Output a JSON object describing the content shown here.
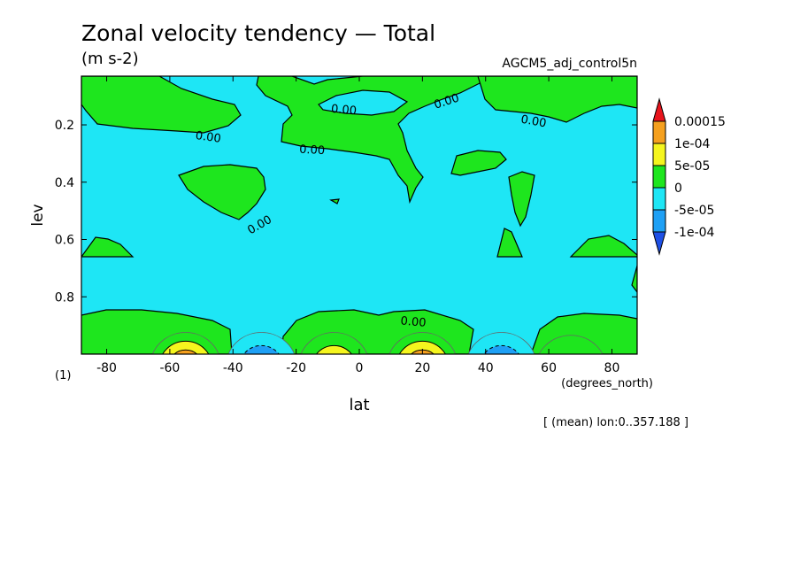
{
  "chart_data": {
    "type": "heatmap",
    "title": "Zonal velocity tendency — Total",
    "units": "(m s-2)",
    "dataset": "AGCM5_adj_control5n",
    "xlabel": "lat",
    "x_units": "(degrees_north)",
    "ylabel": "lev",
    "y_note": "(1)",
    "footnote": "[ (mean) lon:0..357.188 ]",
    "xlim": [
      -88,
      88
    ],
    "ylim": [
      1.0,
      0.03
    ],
    "x_ticks": [
      -80,
      -60,
      -40,
      -20,
      0,
      20,
      40,
      60,
      80
    ],
    "x_tick_labels": [
      "-80",
      "-60",
      "-40",
      "-20",
      "0",
      "20",
      "40",
      "60",
      "80"
    ],
    "y_ticks": [
      0.2,
      0.4,
      0.6,
      0.8
    ],
    "y_tick_labels": [
      "0.2",
      "0.4",
      "0.6",
      "0.8"
    ],
    "colorbar": {
      "levels": [
        "0.00015",
        "1e-04",
        "5e-05",
        "0",
        "-5e-05",
        "-1e-04"
      ],
      "bins": [
        {
          "label": "> 0.00015",
          "color": "#e8141c"
        },
        {
          "label": "1e-04 .. 0.00015",
          "color": "#f5a01e"
        },
        {
          "label": "5e-05 .. 1e-04",
          "color": "#f5f51e"
        },
        {
          "label": "0 .. 5e-05",
          "color": "#1ee61e"
        },
        {
          "label": "-5e-05 .. 0",
          "color": "#1ee6f5"
        },
        {
          "label": "-1e-04 .. -5e-05",
          "color": "#1ea0f5"
        },
        {
          "label": "< -1e-04",
          "color": "#1e50e6"
        }
      ]
    },
    "contour_labels": [
      {
        "text": "0.00",
        "lat": -48,
        "lev": 0.255,
        "rotate": 8
      },
      {
        "text": "0.00",
        "lat": -15,
        "lev": 0.3,
        "rotate": 3
      },
      {
        "text": "0.00",
        "lat": -5,
        "lev": 0.16,
        "rotate": 5
      },
      {
        "text": "0.00",
        "lat": 28,
        "lev": 0.13,
        "rotate": -18
      },
      {
        "text": "0.00",
        "lat": 55,
        "lev": 0.2,
        "rotate": 10
      },
      {
        "text": "0.00",
        "lat": -31,
        "lev": 0.56,
        "rotate": -30
      },
      {
        "text": "0.00",
        "lat": 17,
        "lev": 0.9,
        "rotate": 5
      }
    ],
    "features": [
      {
        "kind": "positive",
        "lat": -55,
        "lev": 0.98,
        "peak": "0.00015"
      },
      {
        "kind": "negative",
        "lat": -31,
        "lev": 0.98,
        "peak": "-1e-04"
      },
      {
        "kind": "positive",
        "lat": -8,
        "lev": 0.98,
        "peak": "1e-04"
      },
      {
        "kind": "positive",
        "lat": 20,
        "lev": 0.98,
        "peak": "0.00015"
      },
      {
        "kind": "negative",
        "lat": 45,
        "lev": 0.98,
        "peak": "-1e-04"
      },
      {
        "kind": "positive",
        "lat": 67,
        "lev": 0.99,
        "peak": "5e-05"
      }
    ],
    "grid": false,
    "legend": "right"
  }
}
